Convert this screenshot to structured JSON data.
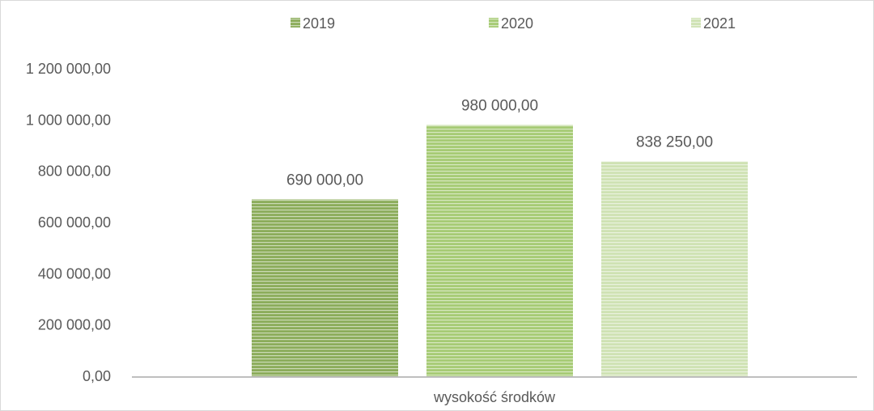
{
  "chart_data": {
    "type": "bar",
    "categories": [
      "wysokość środków"
    ],
    "series": [
      {
        "name": "2019",
        "values": [
          690000
        ],
        "label": "690 000,00",
        "color": "#8bac5a"
      },
      {
        "name": "2020",
        "values": [
          980000
        ],
        "label": "980 000,00",
        "color": "#a6cb74"
      },
      {
        "name": "2021",
        "values": [
          838250
        ],
        "label": "838 250,00",
        "color": "#cfe2b3"
      }
    ],
    "title": "",
    "xlabel": "",
    "ylabel": "",
    "ylim": [
      0,
      1200000
    ],
    "yticks": [
      {
        "value": 0,
        "label": "0,00"
      },
      {
        "value": 200000,
        "label": "200 000,00"
      },
      {
        "value": 400000,
        "label": "400 000,00"
      },
      {
        "value": 600000,
        "label": "600 000,00"
      },
      {
        "value": 800000,
        "label": "800 000,00"
      },
      {
        "value": 1000000,
        "label": "1 000 000,00"
      },
      {
        "value": 1200000,
        "label": "1 200 000,00"
      }
    ],
    "grid": false,
    "legend_position": "top",
    "axis_color": "#bfbfbf",
    "text_color": "#595959"
  }
}
